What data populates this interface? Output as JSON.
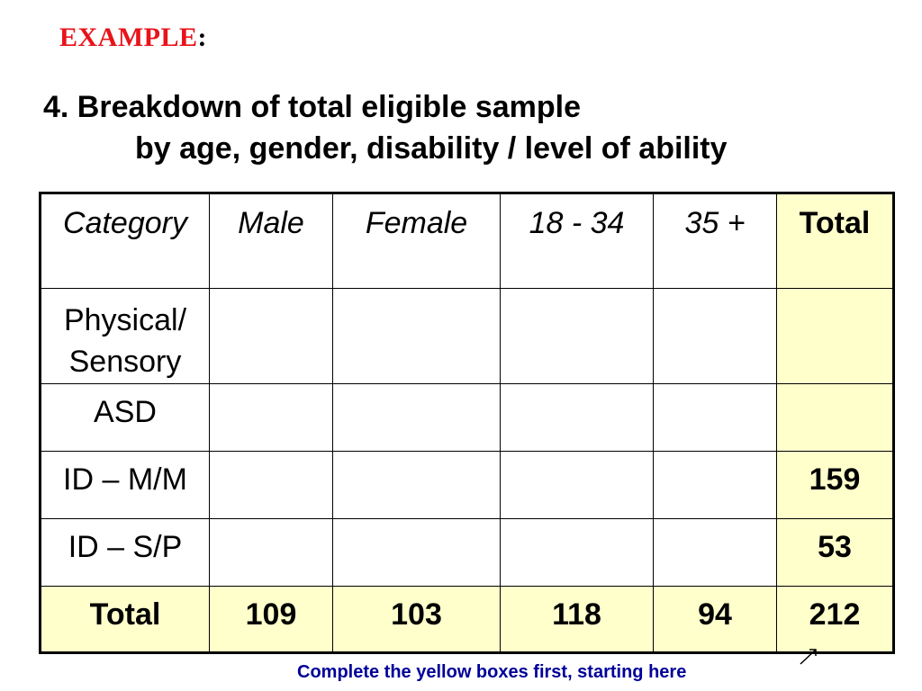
{
  "slide": {
    "example_word": "EXAMPLE",
    "example_colon": ":",
    "heading_line1": "4. Breakdown of total eligible sample",
    "heading_line2": "by age, gender, disability / level of ability",
    "note": "Complete the yellow boxes first, starting here",
    "colors": {
      "example_red": "#e8131a",
      "note_blue": "#000099",
      "highlight_yellow": "#ffffcc"
    }
  },
  "table": {
    "headers": [
      "Category",
      "Male",
      "Female",
      "18 - 34",
      "35 +",
      "Total"
    ],
    "rows": [
      {
        "label": "Physical/ Sensory",
        "male": "",
        "female": "",
        "age_18_34": "",
        "age_35_plus": "",
        "total": ""
      },
      {
        "label": "ASD",
        "male": "",
        "female": "",
        "age_18_34": "",
        "age_35_plus": "",
        "total": ""
      },
      {
        "label": "ID – M/M",
        "male": "",
        "female": "",
        "age_18_34": "",
        "age_35_plus": "",
        "total": "159"
      },
      {
        "label": "ID – S/P",
        "male": "",
        "female": "",
        "age_18_34": "",
        "age_35_plus": "",
        "total": "53"
      }
    ],
    "totals": {
      "label": "Total",
      "male": "109",
      "female": "103",
      "age_18_34": "118",
      "age_35_plus": "94",
      "total": "212"
    }
  }
}
